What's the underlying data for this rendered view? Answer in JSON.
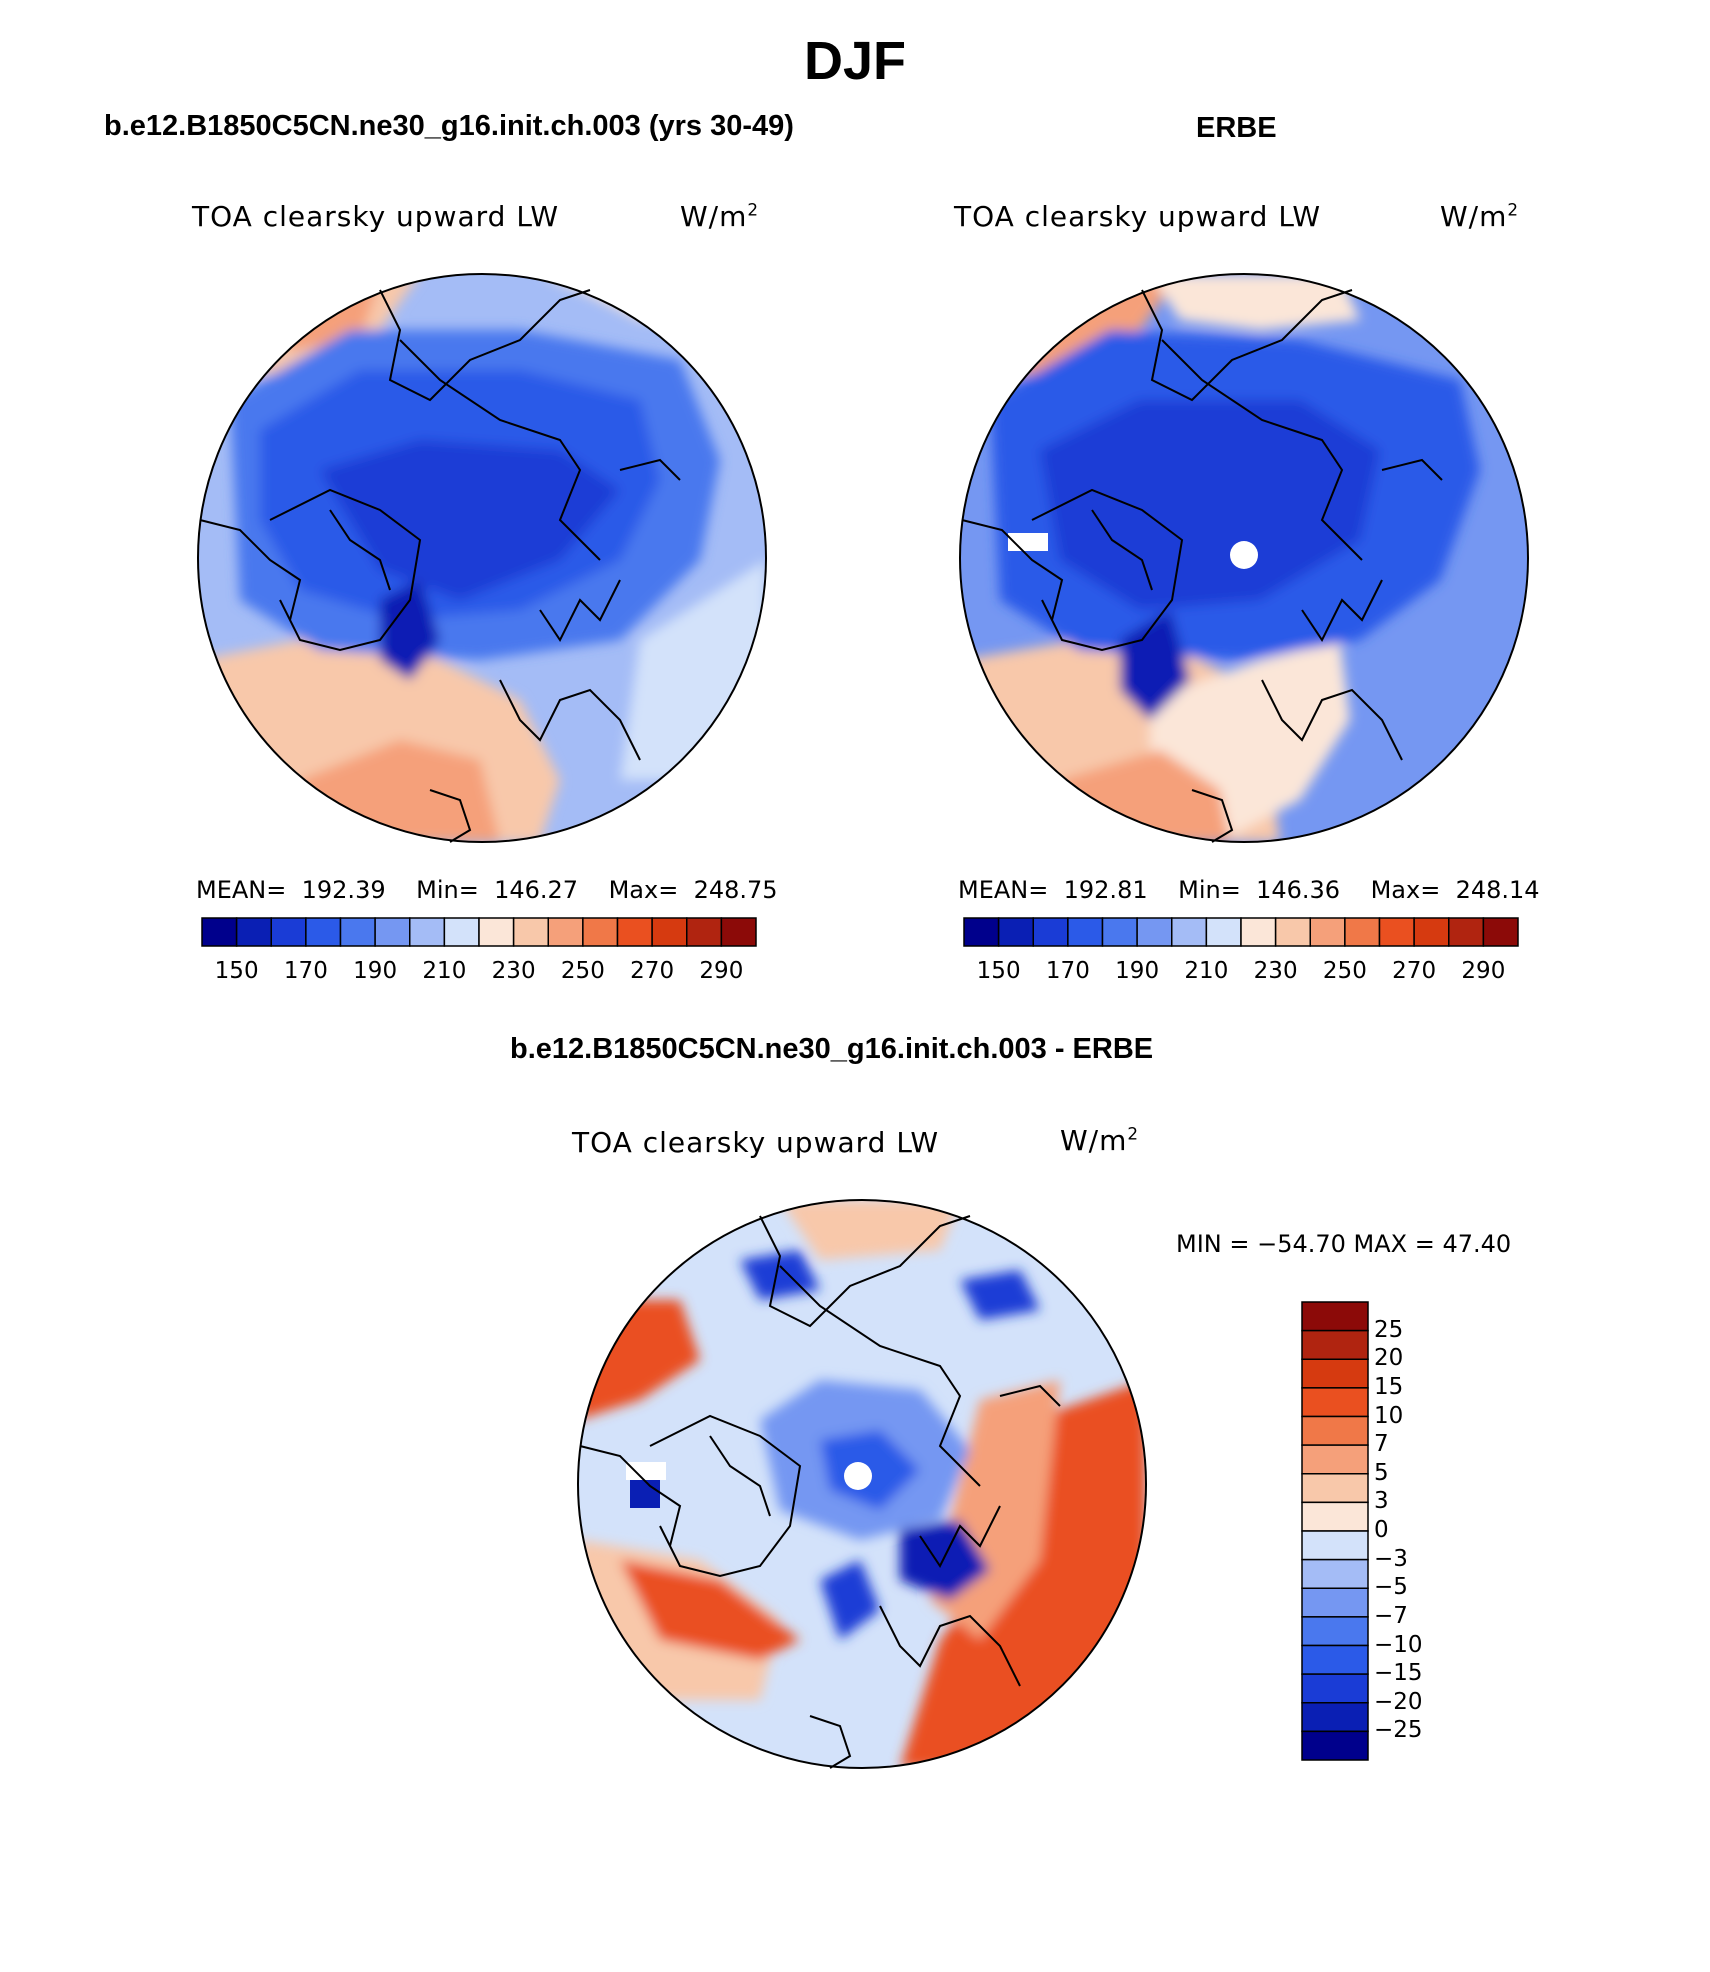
{
  "figure": {
    "title": "DJF"
  },
  "panels": [
    {
      "id": "model",
      "header": "b.e12.B1850C5CN.ne30_g16.init.ch.003 (yrs 30-49)",
      "variable": "TOA clearsky upward LW",
      "units_base": "W/m",
      "units_exp": "2",
      "stats": {
        "mean_label": "MEAN=",
        "mean": "192.39",
        "min_label": "Min=",
        "min": "146.27",
        "max_label": "Max=",
        "max": "248.75"
      }
    },
    {
      "id": "obs",
      "header": "ERBE",
      "variable": "TOA clearsky upward LW",
      "units_base": "W/m",
      "units_exp": "2",
      "stats": {
        "mean_label": "MEAN=",
        "mean": "192.81",
        "min_label": "Min=",
        "min": "146.36",
        "max_label": "Max=",
        "max": "248.14"
      }
    },
    {
      "id": "diff",
      "header": "b.e12.B1850C5CN.ne30_g16.init.ch.003 - ERBE",
      "variable": "TOA clearsky upward LW",
      "units_base": "W/m",
      "units_exp": "2",
      "stats_text": "MIN = −54.70 MAX =  47.40"
    }
  ],
  "chart_data": [
    {
      "type": "heatmap",
      "projection": "north polar stereographic",
      "title": "TOA clearsky upward LW",
      "units": "W/m^2",
      "mean": 192.39,
      "min": 146.27,
      "max": 248.75,
      "levels": [
        150,
        160,
        170,
        180,
        190,
        200,
        210,
        220,
        230,
        240,
        250,
        260,
        270,
        280,
        290
      ],
      "tick_labels": [
        "150",
        "170",
        "190",
        "210",
        "230",
        "250",
        "270",
        "290"
      ],
      "colors": [
        "#00008c",
        "#0a1fb4",
        "#1a3cd6",
        "#2b5ae8",
        "#4a78ee",
        "#7597f2",
        "#a4bcf6",
        "#d3e2fa",
        "#fbe6d8",
        "#f8c8aa",
        "#f5a07a",
        "#f07848",
        "#ea5020",
        "#d63a10",
        "#b02410",
        "#8c0a08"
      ]
    },
    {
      "type": "heatmap",
      "projection": "north polar stereographic",
      "title": "TOA clearsky upward LW",
      "units": "W/m^2",
      "mean": 192.81,
      "min": 146.36,
      "max": 248.14,
      "levels": [
        150,
        160,
        170,
        180,
        190,
        200,
        210,
        220,
        230,
        240,
        250,
        260,
        270,
        280,
        290
      ],
      "tick_labels": [
        "150",
        "170",
        "190",
        "210",
        "230",
        "250",
        "270",
        "290"
      ],
      "colors": [
        "#00008c",
        "#0a1fb4",
        "#1a3cd6",
        "#2b5ae8",
        "#4a78ee",
        "#7597f2",
        "#a4bcf6",
        "#d3e2fa",
        "#fbe6d8",
        "#f8c8aa",
        "#f5a07a",
        "#f07848",
        "#ea5020",
        "#d63a10",
        "#b02410",
        "#8c0a08"
      ]
    },
    {
      "type": "heatmap",
      "projection": "north polar stereographic",
      "title": "TOA clearsky upward LW",
      "units": "W/m^2",
      "min": -54.7,
      "max": 47.4,
      "levels": [
        -25,
        -20,
        -15,
        -10,
        -7,
        -5,
        -3,
        0,
        3,
        5,
        7,
        10,
        15,
        20,
        25
      ],
      "tick_labels": [
        "25",
        "20",
        "15",
        "10",
        "7",
        "5",
        "3",
        "0",
        "−3",
        "−5",
        "−7",
        "−10",
        "−15",
        "−20",
        "−25"
      ],
      "colors_top_to_bottom": [
        "#8c0a08",
        "#b02410",
        "#d63a10",
        "#ea5020",
        "#f07848",
        "#f5a07a",
        "#f8c8aa",
        "#fbe6d8",
        "#d3e2fa",
        "#a4bcf6",
        "#7597f2",
        "#4a78ee",
        "#2b5ae8",
        "#1a3cd6",
        "#0a1fb4",
        "#00008c"
      ]
    }
  ]
}
